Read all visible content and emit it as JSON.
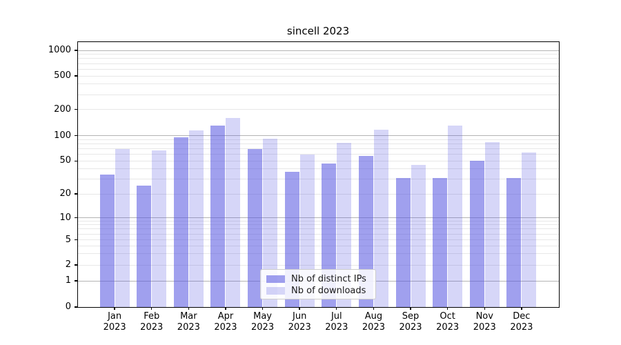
{
  "figure_title": "sincell 2023",
  "chart_data": {
    "type": "bar",
    "title": "sincell 2023",
    "categories": [
      "Jan 2023",
      "Feb 2023",
      "Mar 2023",
      "Apr 2023",
      "May 2023",
      "Jun 2023",
      "Jul 2023",
      "Aug 2023",
      "Sep 2023",
      "Oct 2023",
      "Nov 2023",
      "Dec 2023"
    ],
    "series": [
      {
        "name": "Nb of distinct IPs",
        "color": "rgba(85,85,225,0.56)",
        "values": [
          34,
          25,
          95,
          130,
          70,
          37,
          47,
          57,
          31,
          31,
          50,
          31
        ]
      },
      {
        "name": "Nb of downloads",
        "color": "rgba(85,85,225,0.24)",
        "values": [
          70,
          67,
          114,
          160,
          92,
          60,
          83,
          117,
          45,
          130,
          84,
          63
        ]
      }
    ],
    "yscale": "symlog",
    "y_tick_values": [
      0,
      1,
      2,
      5,
      10,
      20,
      50,
      100,
      200,
      500,
      1000
    ],
    "y_tick_labels": [
      "0",
      "1",
      "2",
      "5",
      "10",
      "20",
      "50",
      "100",
      "200",
      "500",
      "1000"
    ],
    "ylim": [
      0,
      1250
    ],
    "xlabel": "",
    "ylabel": "",
    "grid": "both",
    "major_grid_color": "#b3b3b3",
    "minor_grid_color": "#e7e7e7",
    "legend_position": "lower-center",
    "x_tick_second_line": "2023"
  },
  "legend": {
    "items": [
      {
        "label": "Nb of distinct IPs"
      },
      {
        "label": "Nb of downloads"
      }
    ]
  }
}
